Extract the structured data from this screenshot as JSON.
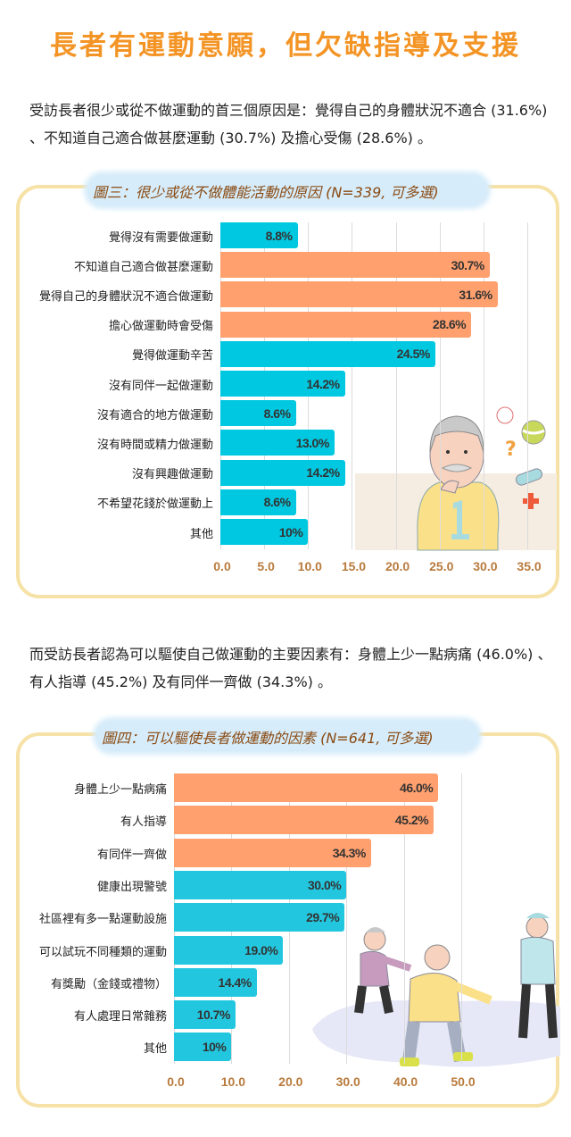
{
  "page": {
    "title": "長者有運動意願，但欠缺指導及支援",
    "paragraph1": "受訪長者很少或從不做運動的首三個原因是：覺得自己的身體狀況不適合 (31.6%) 、不知道自己適合做甚麼運動 (30.7%) 及擔心受傷 (28.6%) 。",
    "paragraph2": "而受訪長者認為可以驅使自己做運動的主要因素有：身體上少一點病痛 (46.0%) 、有人指導 (45.2%) 及有同伴一齊做 (34.3%) 。"
  },
  "colors": {
    "title": "#f39425",
    "highlight_bar": "#ffa06e",
    "normal_bar": "#00c8e0",
    "normal_bar_2": "#22c7df",
    "card_border": "#f6e2a7",
    "axis_tick": "#b97a3c",
    "caption_text": "#8a4a12",
    "caption_bg": "#d6ecfa"
  },
  "chart_data": [
    {
      "type": "bar",
      "orientation": "horizontal",
      "title": "圖三：很少或從不做體能活動的原因 (N=339, 可多選)",
      "categories": [
        "覺得沒有需要做運動",
        "不知道自己適合做甚麼運動",
        "覺得自己的身體狀況不適合做運動",
        "擔心做運動時會受傷",
        "覺得做運動辛苦",
        "沒有同伴一起做運動",
        "沒有適合的地方做運動",
        "沒有時間或精力做運動",
        "沒有興趣做運動",
        "不希望花錢於做運動上",
        "其他"
      ],
      "values": [
        8.8,
        30.7,
        31.6,
        28.6,
        24.5,
        14.2,
        8.6,
        13.0,
        14.2,
        8.6,
        10
      ],
      "labels": [
        "8.8%",
        "30.7%",
        "31.6%",
        "28.6%",
        "24.5%",
        "14.2%",
        "8.6%",
        "13.0%",
        "14.2%",
        "8.6%",
        "10%"
      ],
      "highlight": [
        false,
        true,
        true,
        true,
        false,
        false,
        false,
        false,
        false,
        false,
        false
      ],
      "xticks": [
        "0.0",
        "5.0",
        "10.0",
        "15.0",
        "20.0",
        "25.0",
        "30.0",
        "35.0"
      ],
      "xlim": [
        0,
        35
      ],
      "grid": true,
      "xlabel": "",
      "ylabel": ""
    },
    {
      "type": "bar",
      "orientation": "horizontal",
      "title": "圖四：可以驅使長者做運動的因素 (N=641, 可多選)",
      "categories": [
        "身體上少一點病痛",
        "有人指導",
        "有同伴一齊做",
        "健康出現警號",
        "社區裡有多一點運動設施",
        "可以試玩不同種類的運動",
        "有獎勵（金錢或禮物）",
        "有人處理日常雜務",
        "其他"
      ],
      "values": [
        46.0,
        45.2,
        34.3,
        30.0,
        29.7,
        19.0,
        14.4,
        10.7,
        10
      ],
      "labels": [
        "46.0%",
        "45.2%",
        "34.3%",
        "30.0%",
        "29.7%",
        "19.0%",
        "14.4%",
        "10.7%",
        "10%"
      ],
      "highlight": [
        true,
        true,
        true,
        false,
        false,
        false,
        false,
        false,
        false
      ],
      "xticks": [
        "0.0",
        "10.0",
        "20.0",
        "30.0",
        "40.0",
        "50.0"
      ],
      "xlim": [
        0,
        50
      ],
      "grid": true,
      "xlabel": "",
      "ylabel": ""
    }
  ]
}
